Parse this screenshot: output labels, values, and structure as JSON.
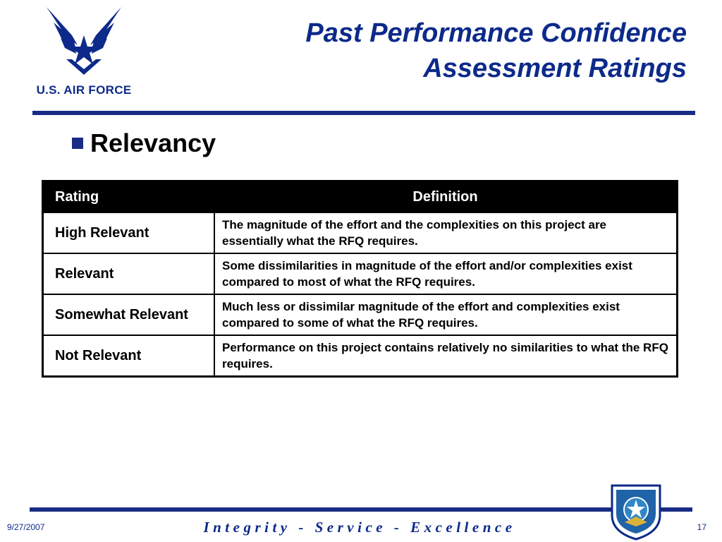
{
  "header": {
    "logo_text": "U.S. AIR FORCE",
    "title_line1": "Past Performance Confidence",
    "title_line2": "Assessment Ratings"
  },
  "bullet": {
    "text": "Relevancy"
  },
  "table": {
    "headers": [
      "Rating",
      "Definition"
    ],
    "rows": [
      {
        "rating": "High Relevant",
        "definition": "The magnitude of the effort and the complexities on this project are essentially what the RFQ requires."
      },
      {
        "rating": "Relevant",
        "definition": "Some dissimilarities in magnitude of the effort and/or complexities exist compared to most of what the RFQ requires."
      },
      {
        "rating": "Somewhat Relevant",
        "definition": "Much less or dissimilar magnitude of the effort and complexities exist compared to some of what the RFQ requires."
      },
      {
        "rating": "Not Relevant",
        "definition": "Performance on this project contains relatively no similarities to what the RFQ requires."
      }
    ]
  },
  "footer": {
    "date": "9/27/2007",
    "motto": "Integrity - Service - Excellence",
    "page_number": "17"
  },
  "colors": {
    "brand_blue": "#0d2a8a",
    "rule_blue": "#1a2b86",
    "header_black": "#000000"
  },
  "icons": {
    "logo": "air-force-wings-icon",
    "shield": "command-shield-icon"
  }
}
